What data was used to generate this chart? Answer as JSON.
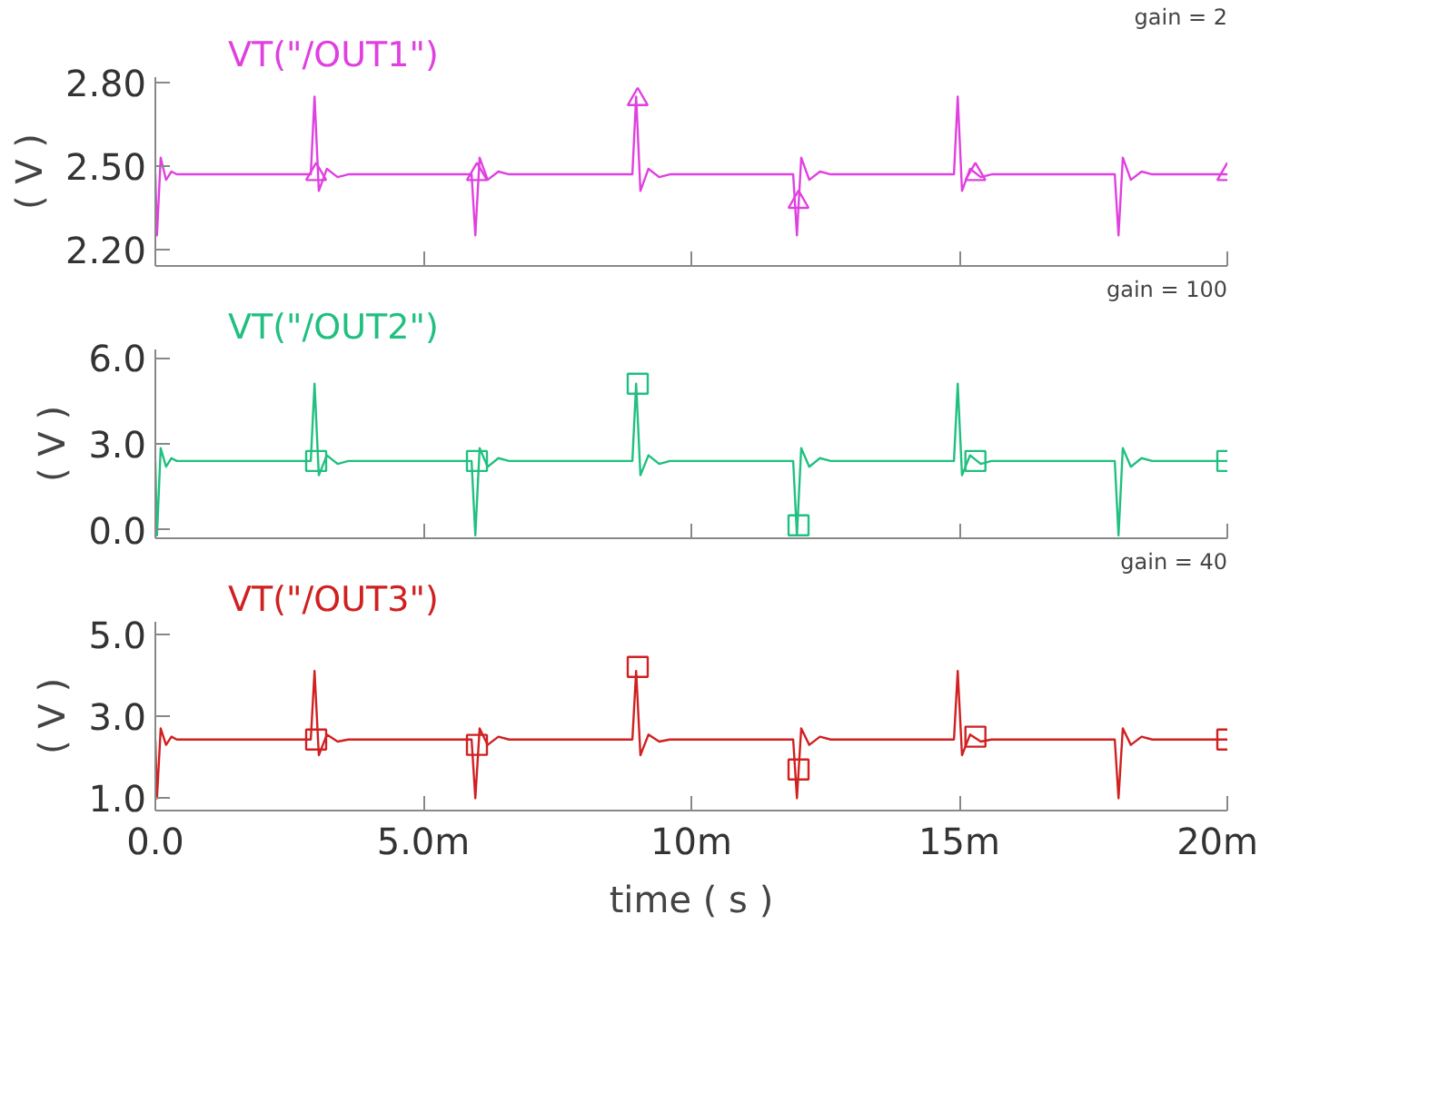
{
  "chart_data": [
    {
      "type": "line",
      "ylabel": "( V )",
      "grid": false,
      "tick_labels": "y",
      "annotations": [
        "gain = 2"
      ],
      "xlim": [
        0,
        20
      ],
      "xticks": [
        {
          "value": 0,
          "label": null
        },
        {
          "value": 5,
          "label": null
        },
        {
          "value": 10,
          "label": null
        },
        {
          "value": 15,
          "label": null
        },
        {
          "value": 20,
          "label": null
        }
      ],
      "ylim": [
        2.14,
        2.82
      ],
      "yticks": [
        {
          "value": 2.2,
          "label": "2.20"
        },
        {
          "value": 2.5,
          "label": "2.50"
        },
        {
          "value": 2.8,
          "label": "2.80"
        }
      ],
      "series": [
        {
          "name": "VT(\"/OUT1\")",
          "color": "#e040e0",
          "x": [
            0,
            0.03,
            0.1,
            0.2,
            0.3,
            0.4,
            2.9,
            2.97,
            3.05,
            3.2,
            3.4,
            3.6,
            5.9,
            5.97,
            6.05,
            6.2,
            6.4,
            6.6,
            8.9,
            8.97,
            9.05,
            9.2,
            9.4,
            9.6,
            11.9,
            11.97,
            12.05,
            12.2,
            12.4,
            12.6,
            14.9,
            14.97,
            15.05,
            15.2,
            15.4,
            15.6,
            17.9,
            17.97,
            18.05,
            18.2,
            18.4,
            18.6,
            20
          ],
          "values": [
            2.47,
            2.25,
            2.53,
            2.45,
            2.48,
            2.47,
            2.47,
            2.75,
            2.41,
            2.49,
            2.46,
            2.47,
            2.47,
            2.25,
            2.53,
            2.45,
            2.48,
            2.47,
            2.47,
            2.75,
            2.41,
            2.49,
            2.46,
            2.47,
            2.47,
            2.25,
            2.53,
            2.45,
            2.48,
            2.47,
            2.47,
            2.75,
            2.41,
            2.49,
            2.46,
            2.47,
            2.47,
            2.25,
            2.53,
            2.45,
            2.48,
            2.47,
            2.47
          ]
        },
        {
          "type": "scatter",
          "marker": "triangle",
          "color": "#e040e0",
          "x": [
            3,
            6,
            9,
            12,
            15.3,
            20
          ],
          "values": [
            2.47,
            2.47,
            2.74,
            2.37,
            2.47,
            2.47
          ]
        }
      ]
    },
    {
      "type": "line",
      "ylabel": "( V )",
      "grid": false,
      "tick_labels": "y",
      "annotations": [
        "gain = 100"
      ],
      "xlim": [
        0,
        20
      ],
      "xticks": [
        {
          "value": 0,
          "label": null
        },
        {
          "value": 5,
          "label": null
        },
        {
          "value": 10,
          "label": null
        },
        {
          "value": 15,
          "label": null
        },
        {
          "value": 20,
          "label": null
        }
      ],
      "ylim": [
        -0.3,
        6.3
      ],
      "yticks": [
        {
          "value": 0,
          "label": "0.0"
        },
        {
          "value": 3,
          "label": "3.0"
        },
        {
          "value": 6,
          "label": "6.0"
        }
      ],
      "series": [
        {
          "name": "VT(\"/OUT2\")",
          "color": "#20c080",
          "x": [
            0,
            0.03,
            0.1,
            0.2,
            0.3,
            0.4,
            2.9,
            2.97,
            3.05,
            3.2,
            3.4,
            3.6,
            5.9,
            5.97,
            6.05,
            6.2,
            6.4,
            6.6,
            8.9,
            8.97,
            9.05,
            9.2,
            9.4,
            9.6,
            11.9,
            11.97,
            12.05,
            12.2,
            12.4,
            12.6,
            14.9,
            14.97,
            15.05,
            15.2,
            15.4,
            15.6,
            17.9,
            17.97,
            18.05,
            18.2,
            18.4,
            18.6,
            20
          ],
          "values": [
            2.4,
            -0.2,
            2.85,
            2.2,
            2.5,
            2.4,
            2.4,
            5.1,
            1.9,
            2.6,
            2.3,
            2.4,
            2.4,
            -0.2,
            2.85,
            2.2,
            2.5,
            2.4,
            2.4,
            5.1,
            1.9,
            2.6,
            2.3,
            2.4,
            2.4,
            -0.2,
            2.85,
            2.2,
            2.5,
            2.4,
            2.4,
            5.1,
            1.9,
            2.6,
            2.3,
            2.4,
            2.4,
            -0.2,
            2.85,
            2.2,
            2.5,
            2.4,
            2.4
          ]
        },
        {
          "type": "scatter",
          "marker": "square",
          "color": "#20c080",
          "x": [
            3,
            6,
            9,
            12,
            15.3,
            20
          ],
          "values": [
            2.4,
            2.4,
            5.1,
            0.15,
            2.4,
            2.4
          ]
        }
      ]
    },
    {
      "type": "line",
      "ylabel": "( V )",
      "xlabel": "time ( s )",
      "grid": false,
      "annotations": [
        "gain = 40"
      ],
      "xlim": [
        0,
        20
      ],
      "xticks": [
        {
          "value": 0,
          "label": "0.0"
        },
        {
          "value": 5,
          "label": "5.0m"
        },
        {
          "value": 10,
          "label": "10m"
        },
        {
          "value": 15,
          "label": "15m"
        },
        {
          "value": 20,
          "label": "20m"
        }
      ],
      "ylim": [
        0.7,
        5.3
      ],
      "yticks": [
        {
          "value": 1,
          "label": "1.0"
        },
        {
          "value": 3,
          "label": "3.0"
        },
        {
          "value": 5,
          "label": "5.0"
        }
      ],
      "series": [
        {
          "name": "VT(\"/OUT3\")",
          "color": "#d02020",
          "x": [
            0,
            0.03,
            0.1,
            0.2,
            0.3,
            0.4,
            2.9,
            2.97,
            3.05,
            3.2,
            3.4,
            3.6,
            5.9,
            5.97,
            6.05,
            6.2,
            6.4,
            6.6,
            8.9,
            8.97,
            9.05,
            9.2,
            9.4,
            9.6,
            11.9,
            11.97,
            12.05,
            12.2,
            12.4,
            12.6,
            14.9,
            14.97,
            15.05,
            15.2,
            15.4,
            15.6,
            17.9,
            17.97,
            18.05,
            18.2,
            18.4,
            18.6,
            20
          ],
          "values": [
            2.43,
            1.0,
            2.7,
            2.3,
            2.5,
            2.43,
            2.43,
            4.1,
            2.05,
            2.55,
            2.38,
            2.43,
            2.43,
            1.0,
            2.7,
            2.3,
            2.5,
            2.43,
            2.43,
            4.1,
            2.05,
            2.55,
            2.38,
            2.43,
            2.43,
            1.0,
            2.7,
            2.3,
            2.5,
            2.43,
            2.43,
            4.1,
            2.05,
            2.55,
            2.38,
            2.43,
            2.43,
            1.0,
            2.7,
            2.3,
            2.5,
            2.43,
            2.43
          ]
        },
        {
          "type": "scatter",
          "marker": "square",
          "color": "#d02020",
          "x": [
            3,
            6,
            9,
            12,
            15.3,
            20
          ],
          "values": [
            2.43,
            2.3,
            4.2,
            1.7,
            2.5,
            2.43
          ]
        }
      ]
    }
  ]
}
